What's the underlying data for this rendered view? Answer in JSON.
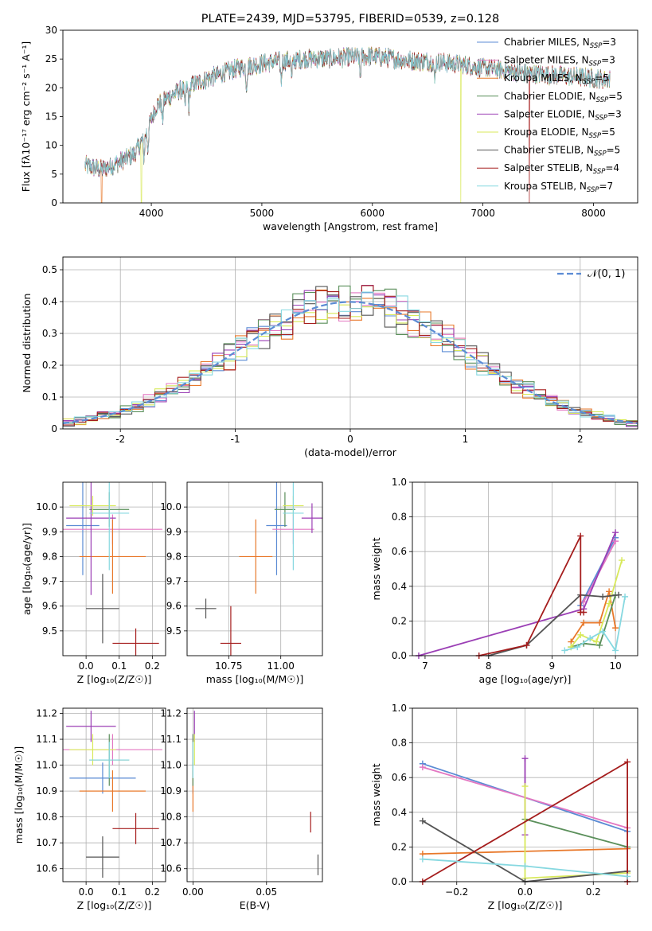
{
  "colors": {
    "chabrier_miles": "#5b8bd4",
    "salpeter_miles": "#e377c2",
    "kroupa_miles": "#e8782a",
    "chabrier_elodie": "#5a8f5a",
    "salpeter_elodie": "#9b3fb5",
    "kroupa_elodie": "#d8e95a",
    "chabrier_stelib": "#555555",
    "salpeter_stelib": "#a51d1d",
    "kroupa_stelib": "#86d8e0",
    "gaussian": "#5b8bd4",
    "grid": "#b0b0b0"
  },
  "chart_data": [
    {
      "id": "spectrum",
      "type": "line",
      "title": "PLATE=2439, MJD=53795, FIBERID=0539, z=0.128",
      "xlabel": "wavelength [Angstrom, rest frame]",
      "ylabel": "Flux [fλ10⁻¹⁷ erg cm⁻² s⁻¹ A⁻¹]",
      "xlim": [
        3200,
        8400
      ],
      "ylim": [
        0,
        30
      ],
      "xticks": [
        4000,
        5000,
        6000,
        7000,
        8000
      ],
      "yticks": [
        0,
        5,
        10,
        15,
        20,
        25,
        30
      ],
      "grid": false,
      "legend_position": "top-right",
      "legend": [
        {
          "main": "Chabrier MILES, N",
          "sub": "SSP",
          "tail": "=3",
          "color_key": "chabrier_miles"
        },
        {
          "main": "Salpeter MILES, N",
          "sub": "SSP",
          "tail": "=3",
          "color_key": "salpeter_miles"
        },
        {
          "main": "Kroupa MILES, N",
          "sub": "SSP",
          "tail": "=5",
          "color_key": "kroupa_miles"
        },
        {
          "main": "Chabrier ELODIE, N",
          "sub": "SSP",
          "tail": "=5",
          "color_key": "chabrier_elodie"
        },
        {
          "main": "Salpeter ELODIE, N",
          "sub": "SSP",
          "tail": "=3",
          "color_key": "salpeter_elodie"
        },
        {
          "main": "Kroupa ELODIE, N",
          "sub": "SSP",
          "tail": "=5",
          "color_key": "kroupa_elodie"
        },
        {
          "main": "Chabrier STELIB, N",
          "sub": "SSP",
          "tail": "=5",
          "color_key": "chabrier_stelib"
        },
        {
          "main": "Salpeter STELIB, N",
          "sub": "SSP",
          "tail": "=4",
          "color_key": "salpeter_stelib"
        },
        {
          "main": "Kroupa STELIB, N",
          "sub": "SSP",
          "tail": "=7",
          "color_key": "kroupa_stelib"
        }
      ],
      "continuum_x": [
        3400,
        3550,
        3700,
        3850,
        3950,
        4050,
        4250,
        4500,
        4800,
        5100,
        5400,
        5700,
        6000,
        6300,
        6600,
        7000,
        7400,
        7800,
        8100
      ],
      "continuum_y": [
        6.5,
        5.8,
        7.0,
        8.5,
        12.0,
        17.0,
        19.5,
        21.5,
        23.5,
        24.5,
        25.0,
        25.2,
        25.5,
        24.8,
        24.5,
        23.5,
        22.5,
        22.0,
        21.5
      ],
      "absorption_lines": [
        3934,
        3969,
        4101,
        4304,
        4340,
        4861,
        5175,
        5270,
        5890,
        6563
      ],
      "dropouts": [
        {
          "x": 3550,
          "color_key": "kroupa_miles"
        },
        {
          "x": 3910,
          "color_key": "kroupa_elodie"
        },
        {
          "x": 6800,
          "color_key": "kroupa_elodie"
        },
        {
          "x": 7420,
          "color_key": "salpeter_stelib"
        }
      ]
    },
    {
      "id": "residuals",
      "type": "histogram",
      "xlabel": "(data-model)/error",
      "ylabel": "Normed distribution",
      "xlim": [
        -2.5,
        2.5
      ],
      "ylim": [
        0,
        0.54
      ],
      "xticks": [
        -2,
        -1,
        0,
        1,
        2
      ],
      "yticks": [
        0,
        0.1,
        0.2,
        0.3,
        0.4,
        0.5
      ],
      "grid": true,
      "bin_width": 0.1,
      "legend_position": "top-right",
      "legend_label": "𝒩(0, 1)"
    },
    {
      "id": "age_vs_Z",
      "type": "errorbar",
      "xlabel": "Z [log₁₀(Z/Z☉)]",
      "ylabel": "age  [log₁₀(age/yr)]",
      "xlim": [
        -0.07,
        0.24
      ],
      "ylim": [
        9.4,
        10.1
      ],
      "xticks": [
        0.0,
        0.1,
        0.2
      ],
      "xtick_labels": [
        "0.0",
        "0.1",
        "0.2"
      ],
      "yticks": [
        9.5,
        9.6,
        9.7,
        9.8,
        9.9,
        10.0
      ],
      "ytick_labels": [
        "9.5",
        "9.6",
        "9.7",
        "9.8",
        "9.9",
        "10.0"
      ],
      "grid": true,
      "points": [
        {
          "key": "chabrier_miles",
          "x": -0.01,
          "xerr": 0.05,
          "y": 9.925,
          "yerr": 0.2
        },
        {
          "key": "salpeter_miles",
          "x": 0.08,
          "xerr": 0.15,
          "y": 9.91,
          "yerr": 0.06
        },
        {
          "key": "kroupa_miles",
          "x": 0.08,
          "xerr": 0.1,
          "y": 9.8,
          "yerr": 0.15
        },
        {
          "key": "chabrier_elodie",
          "x": 0.07,
          "xerr": 0.06,
          "y": 9.99,
          "yerr": 0.07
        },
        {
          "key": "salpeter_elodie",
          "x": 0.015,
          "xerr": 0.075,
          "y": 9.955,
          "yerr": 0.31
        },
        {
          "key": "kroupa_elodie",
          "x": 0.02,
          "xerr": 0.07,
          "y": 10.005,
          "yerr": 0.04
        },
        {
          "key": "chabrier_stelib",
          "x": 0.05,
          "xerr": 0.05,
          "y": 9.59,
          "yerr": 0.14
        },
        {
          "key": "salpeter_stelib",
          "x": 0.15,
          "xerr": 0.07,
          "y": 9.45,
          "yerr": 0.06
        },
        {
          "key": "kroupa_stelib",
          "x": 0.07,
          "xerr": 0.06,
          "y": 9.975,
          "yerr": 0.23
        }
      ]
    },
    {
      "id": "age_vs_mass",
      "type": "errorbar",
      "xlabel": "mass [log₁₀(M/M☉)]",
      "ylabel": "",
      "xlim": [
        10.55,
        11.2
      ],
      "ylim": [
        9.4,
        10.1
      ],
      "xticks": [
        10.75,
        11.0
      ],
      "xtick_labels": [
        "10.75",
        "11.00"
      ],
      "yticks": [
        9.5,
        9.6,
        9.7,
        9.8,
        9.9,
        10.0
      ],
      "ytick_labels": [
        "9.5",
        "9.6",
        "9.7",
        "9.8",
        "9.9",
        "10.0"
      ],
      "grid": true,
      "points": [
        {
          "key": "chabrier_miles",
          "x": 10.98,
          "xerr": 0.05,
          "y": 9.925,
          "yerr": 0.2
        },
        {
          "key": "salpeter_miles",
          "x": 11.06,
          "xerr": 0.1,
          "y": 9.91,
          "yerr": 0.06
        },
        {
          "key": "kroupa_miles",
          "x": 10.88,
          "xerr": 0.08,
          "y": 9.8,
          "yerr": 0.15
        },
        {
          "key": "chabrier_elodie",
          "x": 11.02,
          "xerr": 0.05,
          "y": 9.99,
          "yerr": 0.07
        },
        {
          "key": "salpeter_elodie",
          "x": 11.15,
          "xerr": 0.05,
          "y": 9.955,
          "yerr": 0.06
        },
        {
          "key": "kroupa_elodie",
          "x": 11.06,
          "xerr": 0.05,
          "y": 10.005,
          "yerr": 0.04
        },
        {
          "key": "chabrier_stelib",
          "x": 10.64,
          "xerr": 0.05,
          "y": 9.59,
          "yerr": 0.04
        },
        {
          "key": "salpeter_stelib",
          "x": 10.76,
          "xerr": 0.05,
          "y": 9.45,
          "yerr": 0.15
        },
        {
          "key": "kroupa_stelib",
          "x": 11.06,
          "xerr": 0.05,
          "y": 9.975,
          "yerr": 0.23
        }
      ]
    },
    {
      "id": "mass_weight_vs_age",
      "type": "line",
      "xlabel": "age  [log₁₀(age/yr)]",
      "ylabel": "mass weight",
      "xlim": [
        6.8,
        10.35
      ],
      "ylim": [
        0,
        1.0
      ],
      "xticks": [
        7,
        8,
        9,
        10
      ],
      "xtick_labels": [
        "7",
        "8",
        "9",
        "10"
      ],
      "yticks": [
        0,
        0.2,
        0.4,
        0.6,
        0.8,
        1.0
      ],
      "ytick_labels": [
        "0.0",
        "0.2",
        "0.4",
        "0.6",
        "0.8",
        "1.0"
      ],
      "grid": true,
      "series": [
        {
          "key": "chabrier_miles",
          "x": [
            9.45,
            10.0
          ],
          "y": [
            0.29,
            0.68
          ]
        },
        {
          "key": "salpeter_miles",
          "x": [
            9.5,
            10.0
          ],
          "y": [
            0.31,
            0.66
          ]
        },
        {
          "key": "kroupa_miles",
          "x": [
            9.3,
            9.5,
            9.75,
            9.9,
            10.0
          ],
          "y": [
            0.08,
            0.19,
            0.19,
            0.37,
            0.16
          ]
        },
        {
          "key": "chabrier_elodie",
          "x": [
            9.3,
            9.5,
            9.75,
            10.0
          ],
          "y": [
            0.05,
            0.07,
            0.06,
            0.35
          ]
        },
        {
          "key": "salpeter_elodie",
          "x": [
            6.9,
            9.5,
            10.0
          ],
          "y": [
            0.0,
            0.27,
            0.71
          ]
        },
        {
          "key": "kroupa_elodie",
          "x": [
            9.3,
            9.45,
            9.7,
            9.9,
            10.1
          ],
          "y": [
            0.05,
            0.12,
            0.08,
            0.3,
            0.55
          ]
        },
        {
          "key": "chabrier_stelib",
          "x": [
            8.0,
            8.6,
            9.45,
            9.8,
            10.05
          ],
          "y": [
            0.0,
            0.06,
            0.35,
            0.34,
            0.35
          ]
        },
        {
          "key": "salpeter_stelib",
          "x": [
            7.85,
            8.6,
            9.45,
            9.45,
            9.5
          ],
          "y": [
            0.0,
            0.06,
            0.69,
            0.25,
            0.25
          ]
        },
        {
          "key": "kroupa_stelib",
          "x": [
            9.2,
            9.4,
            9.6,
            9.8,
            10.0,
            10.15
          ],
          "y": [
            0.03,
            0.05,
            0.1,
            0.14,
            0.03,
            0.34
          ]
        }
      ]
    },
    {
      "id": "mass_vs_Z",
      "type": "errorbar",
      "xlabel": "Z [log₁₀(Z/Z☉)]",
      "ylabel": "mass [log₁₀(M/M☉)]",
      "xlim": [
        -0.07,
        0.24
      ],
      "ylim": [
        10.55,
        11.22
      ],
      "xticks": [
        0.0,
        0.1,
        0.2
      ],
      "xtick_labels": [
        "0.0",
        "0.1",
        "0.2"
      ],
      "yticks": [
        10.6,
        10.7,
        10.8,
        10.9,
        11.0,
        11.1,
        11.2
      ],
      "ytick_labels": [
        "10.6",
        "10.7",
        "10.8",
        "10.9",
        "11.0",
        "11.1",
        "11.2"
      ],
      "grid": true,
      "points": [
        {
          "key": "chabrier_miles",
          "x": 0.05,
          "xerr": 0.1,
          "y": 10.95,
          "yerr": 0.06
        },
        {
          "key": "salpeter_miles",
          "x": 0.08,
          "xerr": 0.15,
          "y": 11.06,
          "yerr": 0.06
        },
        {
          "key": "kroupa_miles",
          "x": 0.08,
          "xerr": 0.1,
          "y": 10.9,
          "yerr": 0.08
        },
        {
          "key": "chabrier_elodie",
          "x": 0.07,
          "xerr": 0.06,
          "y": 11.02,
          "yerr": 0.1
        },
        {
          "key": "salpeter_elodie",
          "x": 0.015,
          "xerr": 0.075,
          "y": 11.15,
          "yerr": 0.06
        },
        {
          "key": "kroupa_elodie",
          "x": 0.02,
          "xerr": 0.07,
          "y": 11.06,
          "yerr": 0.06
        },
        {
          "key": "chabrier_stelib",
          "x": 0.05,
          "xerr": 0.05,
          "y": 10.645,
          "yerr": 0.08
        },
        {
          "key": "salpeter_stelib",
          "x": 0.15,
          "xerr": 0.07,
          "y": 10.755,
          "yerr": 0.06
        },
        {
          "key": "kroupa_stelib",
          "x": 0.07,
          "xerr": 0.06,
          "y": 11.02,
          "yerr": 0.07
        }
      ]
    },
    {
      "id": "mass_vs_ebv",
      "type": "errorbar",
      "xlabel": "E(B-V)",
      "ylabel": "",
      "xlim": [
        -0.004,
        0.088
      ],
      "ylim": [
        10.55,
        11.22
      ],
      "xticks": [
        0.0,
        0.05
      ],
      "xtick_labels": [
        "0.00",
        "0.05"
      ],
      "yticks": [
        10.6,
        10.7,
        10.8,
        10.9,
        11.0,
        11.1,
        11.2
      ],
      "ytick_labels": [
        "10.6",
        "10.7",
        "10.8",
        "10.9",
        "11.0",
        "11.1",
        "11.2"
      ],
      "grid": true,
      "points": [
        {
          "key": "chabrier_miles",
          "x": 0.0,
          "xerr": 0.0,
          "y": 10.95,
          "yerr": 0.06
        },
        {
          "key": "salpeter_miles",
          "x": 0.0,
          "xerr": 0.0,
          "y": 11.06,
          "yerr": 0.06
        },
        {
          "key": "kroupa_miles",
          "x": 0.0,
          "xerr": 0.0,
          "y": 10.9,
          "yerr": 0.08
        },
        {
          "key": "chabrier_elodie",
          "x": 0.0,
          "xerr": 0.0,
          "y": 11.02,
          "yerr": 0.1
        },
        {
          "key": "salpeter_elodie",
          "x": 0.001,
          "xerr": 0.0,
          "y": 11.15,
          "yerr": 0.06
        },
        {
          "key": "kroupa_elodie",
          "x": 0.001,
          "xerr": 0.0,
          "y": 11.06,
          "yerr": 0.06
        },
        {
          "key": "chabrier_stelib",
          "x": 0.085,
          "xerr": 0.0,
          "y": 10.615,
          "yerr": 0.04
        },
        {
          "key": "salpeter_stelib",
          "x": 0.08,
          "xerr": 0.0,
          "y": 10.78,
          "yerr": 0.04
        },
        {
          "key": "kroupa_stelib",
          "x": 0.0,
          "xerr": 0.0,
          "y": 11.02,
          "yerr": 0.07
        }
      ]
    },
    {
      "id": "mass_weight_vs_Z",
      "type": "line",
      "xlabel": "Z [log₁₀(Z/Z☉)]",
      "ylabel": "mass weight",
      "xlim": [
        -0.33,
        0.33
      ],
      "ylim": [
        0,
        1.0
      ],
      "xticks": [
        -0.2,
        0.0,
        0.2
      ],
      "xtick_labels": [
        "−0.2",
        "0.0",
        "0.2"
      ],
      "yticks": [
        0,
        0.2,
        0.4,
        0.6,
        0.8,
        1.0
      ],
      "ytick_labels": [
        "0.0",
        "0.2",
        "0.4",
        "0.6",
        "0.8",
        "1.0"
      ],
      "grid": true,
      "series": [
        {
          "key": "chabrier_miles",
          "x": [
            -0.3,
            0.3
          ],
          "y": [
            0.68,
            0.29
          ]
        },
        {
          "key": "salpeter_miles",
          "x": [
            -0.3,
            0.3
          ],
          "y": [
            0.66,
            0.31
          ]
        },
        {
          "key": "kroupa_miles",
          "x": [
            -0.3,
            0.3
          ],
          "y": [
            0.16,
            0.19
          ]
        },
        {
          "key": "chabrier_elodie",
          "x": [
            0.0,
            0.3
          ],
          "y": [
            0.36,
            0.2
          ]
        },
        {
          "key": "salpeter_elodie",
          "x": [
            0.0,
            0.0
          ],
          "y": [
            0.27,
            0.71
          ]
        },
        {
          "key": "kroupa_elodie",
          "x": [
            0.0,
            0.0,
            0.3
          ],
          "y": [
            0.55,
            0.02,
            0.05
          ]
        },
        {
          "key": "chabrier_stelib",
          "x": [
            -0.3,
            0.0,
            0.3
          ],
          "y": [
            0.35,
            0.0,
            0.06
          ]
        },
        {
          "key": "salpeter_stelib",
          "x": [
            -0.3,
            0.3,
            0.3
          ],
          "y": [
            0.0,
            0.69,
            0.0
          ]
        },
        {
          "key": "kroupa_stelib",
          "x": [
            -0.3,
            0.0,
            0.3
          ],
          "y": [
            0.13,
            0.09,
            0.03
          ]
        }
      ]
    }
  ]
}
